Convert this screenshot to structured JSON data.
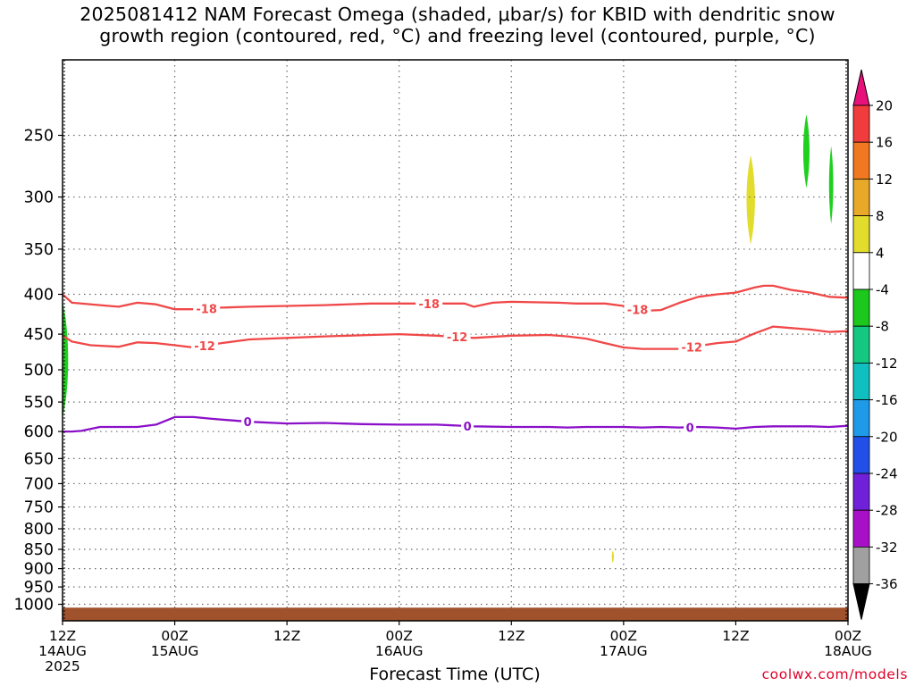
{
  "title": {
    "line1": "2025081412 NAM Forecast Omega (shaded, μbar/s) for KBID with dendritic snow",
    "line2": "growth region (contoured, red, °C) and freezing level (contoured, purple, °C)"
  },
  "credit": "coolwx.com/models",
  "chart_data": {
    "type": "contour",
    "title": "2025081412 NAM Forecast Omega (shaded, μbar/s) for KBID with dendritic snow growth region (contoured, red, °C) and freezing level (contoured, purple, °C)",
    "xlabel": "Forecast Time (UTC)",
    "ylabel": "",
    "x_unit": "forecast hour",
    "xlim": [
      0,
      84
    ],
    "ylim": [
      1050,
      200
    ],
    "y_scale": "log",
    "grid": true,
    "x_ticks": [
      {
        "hour": 0,
        "labels": [
          "12Z",
          "14AUG",
          "2025"
        ]
      },
      {
        "hour": 12,
        "labels": [
          "00Z",
          "15AUG"
        ]
      },
      {
        "hour": 24,
        "labels": [
          "12Z"
        ]
      },
      {
        "hour": 36,
        "labels": [
          "00Z",
          "16AUG"
        ]
      },
      {
        "hour": 48,
        "labels": [
          "12Z"
        ]
      },
      {
        "hour": 60,
        "labels": [
          "00Z",
          "17AUG"
        ]
      },
      {
        "hour": 72,
        "labels": [
          "12Z"
        ]
      },
      {
        "hour": 84,
        "labels": [
          "00Z",
          "18AUG"
        ]
      }
    ],
    "y_ticks": [
      250,
      300,
      350,
      400,
      450,
      500,
      550,
      600,
      650,
      700,
      750,
      800,
      850,
      900,
      950,
      1000
    ],
    "series": [
      {
        "name": "-18",
        "kind": "isotherm",
        "color": "#f04848",
        "x": [
          0,
          1,
          4,
          6,
          8,
          10,
          12,
          14,
          17,
          20,
          24,
          28,
          33,
          36,
          38,
          43,
          44,
          46,
          48,
          53,
          55,
          58,
          60,
          62,
          64,
          66,
          68,
          70,
          72,
          74,
          75,
          76,
          78,
          80,
          82,
          84
        ],
        "y": [
          400,
          410,
          413,
          415,
          410,
          412,
          418,
          418,
          416,
          415,
          414,
          413,
          411,
          411,
          411,
          411,
          415,
          410,
          409,
          410,
          411,
          411,
          414,
          420,
          419,
          410,
          403,
          400,
          398,
          392,
          390,
          390,
          395,
          398,
          403,
          404
        ]
      },
      {
        "name": "-12",
        "kind": "isotherm",
        "color": "#f04848",
        "x": [
          0,
          1,
          3,
          6,
          8,
          10,
          12,
          14,
          17,
          20,
          24,
          28,
          33,
          36,
          40,
          44,
          48,
          52,
          54,
          56,
          58,
          60,
          62,
          64,
          66,
          68,
          70,
          72,
          74,
          76,
          78,
          80,
          82,
          84
        ],
        "y": [
          452,
          460,
          465,
          467,
          461,
          462,
          465,
          468,
          462,
          457,
          455,
          453,
          451,
          450,
          452,
          455,
          452,
          451,
          453,
          456,
          462,
          468,
          470,
          470,
          470,
          466,
          462,
          460,
          449,
          440,
          442,
          444,
          447,
          446
        ]
      },
      {
        "name": "0",
        "kind": "freezing level",
        "color": "#8b10c8",
        "x": [
          0,
          1,
          2,
          4,
          6,
          8,
          10,
          12,
          14,
          16,
          20,
          24,
          28,
          32,
          36,
          40,
          44,
          48,
          50,
          52,
          54,
          56,
          58,
          60,
          62,
          64,
          66,
          68,
          70,
          72,
          74,
          76,
          78,
          80,
          82,
          84
        ],
        "y": [
          600,
          600,
          599,
          592,
          592,
          592,
          588,
          575,
          575,
          578,
          583,
          586,
          585,
          587,
          588,
          588,
          591,
          592,
          592,
          592,
          593,
          592,
          592,
          592,
          593,
          592,
          593,
          592,
          593,
          595,
          592,
          591,
          591,
          591,
          592,
          590
        ]
      }
    ],
    "contour_labels": [
      {
        "series": "-18",
        "text": "-18",
        "x": [
          15.4,
          39.2,
          61.5
        ]
      },
      {
        "series": "-12",
        "text": "-12",
        "x": [
          15.2,
          42.2,
          67.3
        ]
      },
      {
        "series": "0",
        "text": "0",
        "x": [
          19.8,
          43.3,
          67.1
        ]
      }
    ],
    "shaded_areas": [
      {
        "color": "#1fd01f",
        "hour_range": [
          0.0,
          0.8
        ],
        "p_range": [
          410,
          575
        ]
      },
      {
        "color": "#e2dc2c",
        "hour_range": [
          73.0,
          74.2
        ],
        "p_range": [
          265,
          345
        ]
      },
      {
        "color": "#1fd01f",
        "hour_range": [
          79.1,
          80.0
        ],
        "p_range": [
          235,
          292
        ]
      },
      {
        "color": "#1fd01f",
        "hour_range": [
          81.9,
          82.5
        ],
        "p_range": [
          258,
          325
        ]
      },
      {
        "color": "#e2dc2c",
        "hour_range": [
          58.7,
          59.0
        ],
        "p_range": [
          853,
          885
        ]
      }
    ],
    "ground": {
      "color": "#a0522d",
      "p_top": 1010,
      "p_bottom": 1050
    },
    "legend": {
      "position": "right",
      "title": "",
      "ticks": [
        20,
        16,
        12,
        8,
        4,
        -4,
        -8,
        -12,
        -16,
        -20,
        -24,
        -28,
        -32,
        -36
      ],
      "bins": [
        {
          "color": "#f03c3c"
        },
        {
          "color": "#f07820"
        },
        {
          "color": "#e8a828"
        },
        {
          "color": "#e2dc2c"
        },
        {
          "color": "#ffffff"
        },
        {
          "color": "#1cc81c"
        },
        {
          "color": "#14c882"
        },
        {
          "color": "#10c0c0"
        },
        {
          "color": "#1e9ae8"
        },
        {
          "color": "#2050e8"
        },
        {
          "color": "#7020d8"
        },
        {
          "color": "#a810c8"
        },
        {
          "color": "#a0a0a0"
        }
      ],
      "over_color": "#e8107a",
      "under_color": "#000000"
    }
  }
}
